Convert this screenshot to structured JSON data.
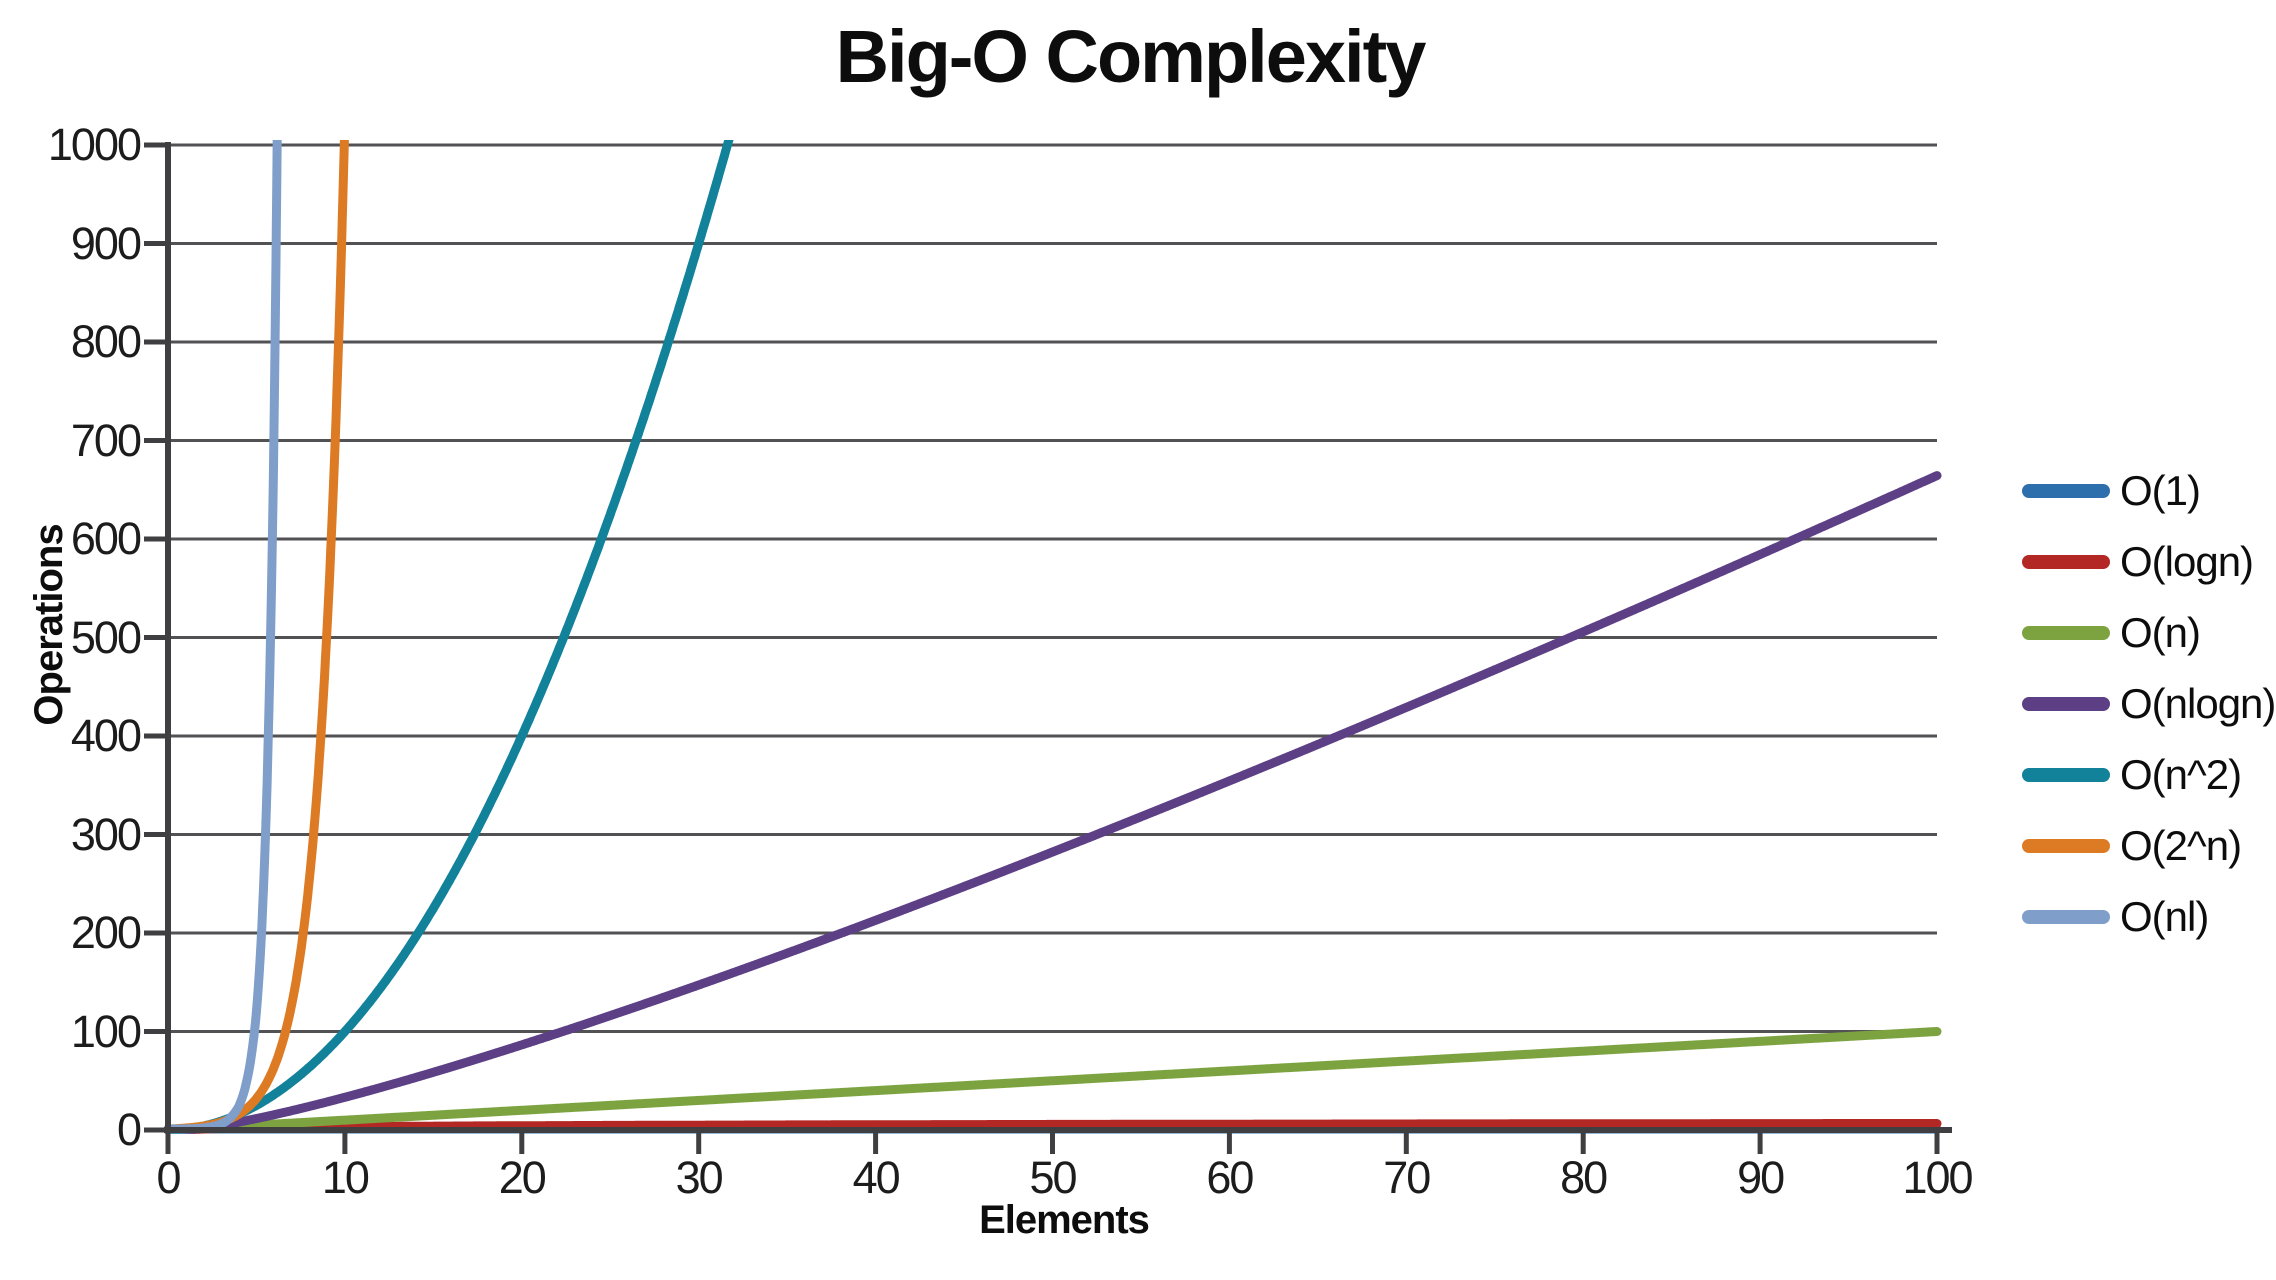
{
  "title": "Big-O Complexity",
  "axes": {
    "x_label": "Elements",
    "y_label": "Operations",
    "x_ticks": [
      0,
      10,
      20,
      30,
      40,
      50,
      60,
      70,
      80,
      90,
      100
    ],
    "y_ticks": [
      0,
      100,
      200,
      300,
      400,
      500,
      600,
      700,
      800,
      900,
      1000
    ]
  },
  "chart_data": {
    "type": "line",
    "title": "Big-O Complexity",
    "xlabel": "Elements",
    "ylabel": "Operations",
    "xlim": [
      0,
      100
    ],
    "ylim": [
      0,
      1000
    ],
    "grid": "horizontal",
    "legend_position": "right",
    "series": [
      {
        "name": "O(1)",
        "color": "#2d6fad",
        "fn": "const",
        "formula": "y = 1",
        "key_points": {
          "x": [
            0,
            100
          ],
          "y": [
            1,
            1
          ]
        }
      },
      {
        "name": "O(logn)",
        "color": "#b32825",
        "fn": "log2",
        "formula": "y = log2(n)",
        "key_points": {
          "x": [
            1,
            10,
            20,
            40,
            60,
            80,
            100
          ],
          "y": [
            0,
            3.3,
            4.3,
            5.3,
            5.9,
            6.3,
            6.6
          ]
        }
      },
      {
        "name": "O(n)",
        "color": "#7ca340",
        "fn": "linear",
        "formula": "y = n",
        "key_points": {
          "x": [
            0,
            20,
            40,
            60,
            80,
            100
          ],
          "y": [
            0,
            20,
            40,
            60,
            80,
            100
          ]
        }
      },
      {
        "name": "O(nlogn)",
        "color": "#5d3f86",
        "fn": "nlogn",
        "formula": "y = n·log2(n)",
        "key_points": {
          "x": [
            0,
            10,
            20,
            30,
            40,
            50,
            60,
            70,
            80,
            90,
            100
          ],
          "y": [
            0,
            33,
            86,
            147,
            213,
            282,
            354,
            429,
            505,
            584,
            664
          ]
        }
      },
      {
        "name": "O(n^2)",
        "color": "#12829a",
        "fn": "square",
        "formula": "y = n²",
        "key_points": {
          "x": [
            0,
            5,
            10,
            15,
            20,
            25,
            30,
            31.6
          ],
          "y": [
            0,
            25,
            100,
            225,
            400,
            625,
            900,
            1000
          ]
        }
      },
      {
        "name": "O(2^n)",
        "color": "#dd7a24",
        "fn": "pow2",
        "formula": "y = 2^n",
        "key_points": {
          "x": [
            0,
            2,
            4,
            6,
            8,
            10
          ],
          "y": [
            1,
            4,
            16,
            64,
            256,
            1000
          ]
        }
      },
      {
        "name": "O(nl)",
        "color": "#7f9ec9",
        "fn": "factorial",
        "formula": "y = n!",
        "key_points": {
          "x": [
            0,
            1,
            2,
            3,
            4,
            5,
            6,
            6.1
          ],
          "y": [
            1,
            1,
            2,
            6,
            24,
            120,
            720,
            1000
          ]
        }
      }
    ]
  }
}
